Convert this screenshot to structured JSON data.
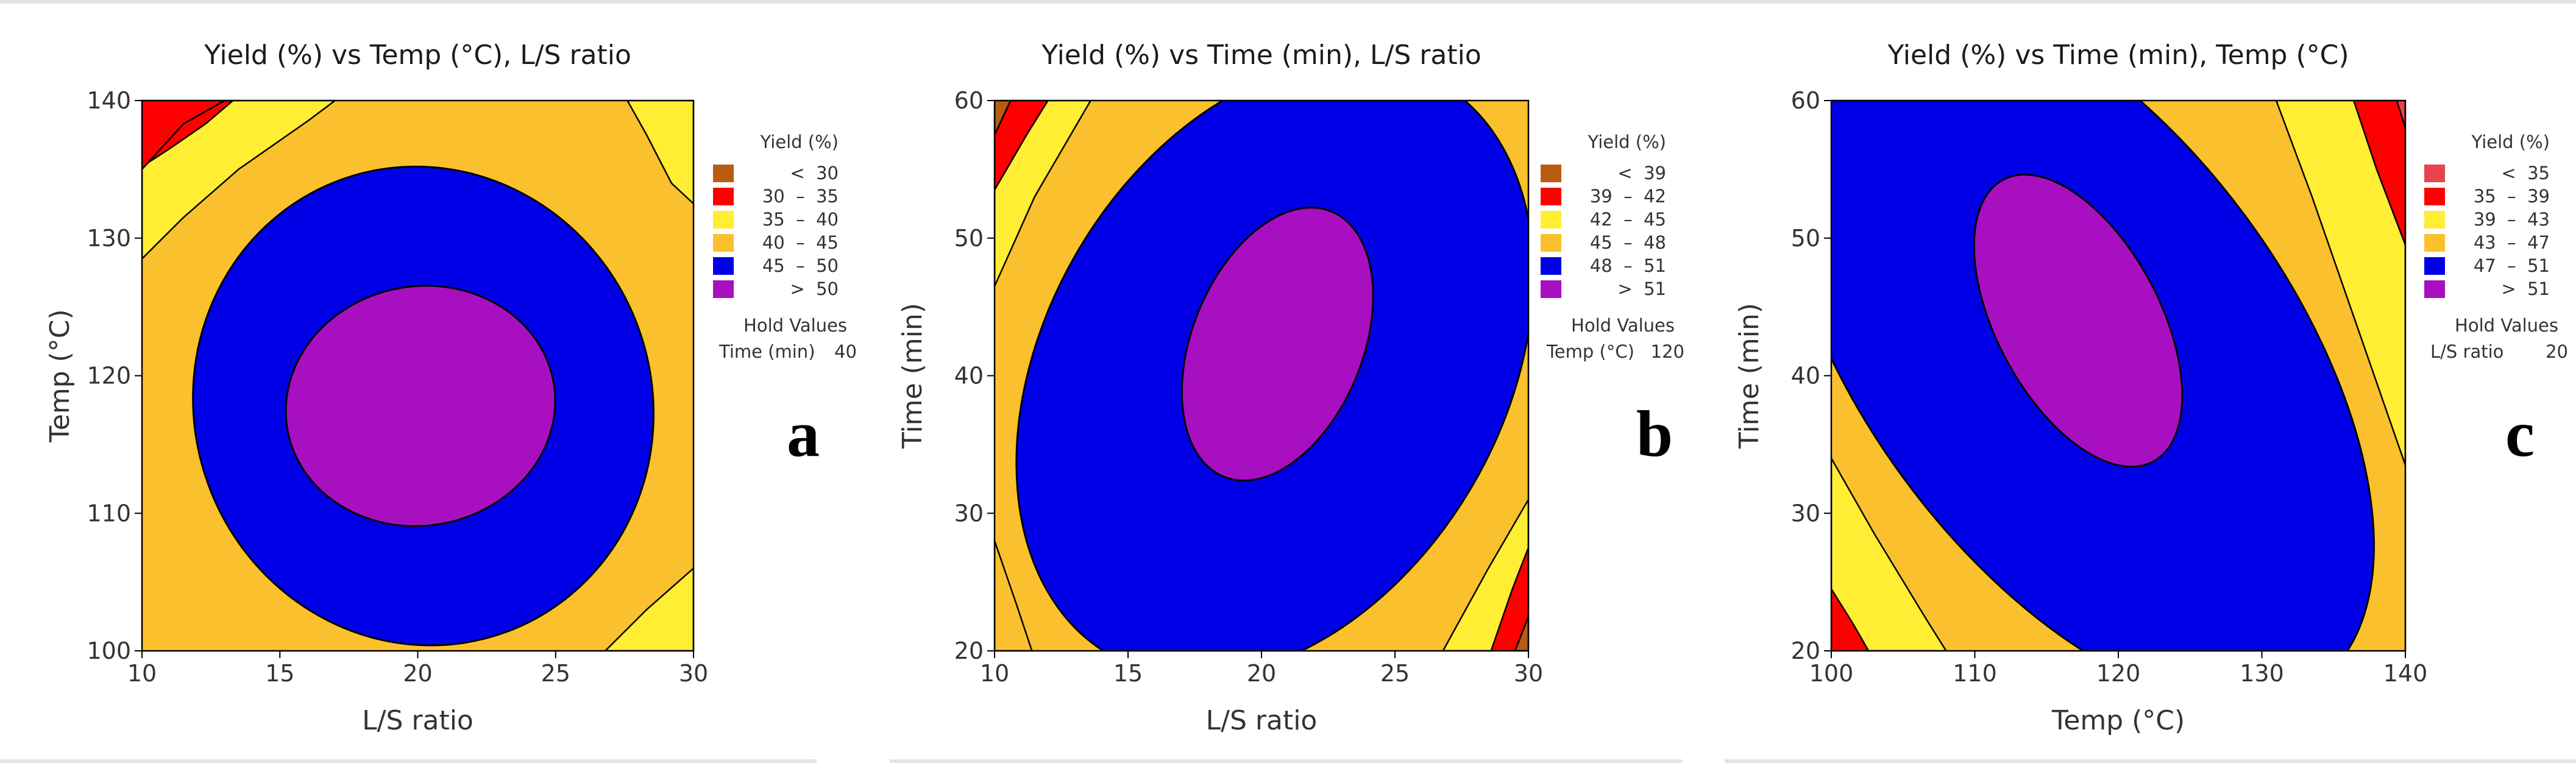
{
  "figure": {
    "background": "#ffffff",
    "separator_color": "#e3e3e3"
  },
  "chart_data": [
    {
      "type": "contour",
      "panel_letter": "a",
      "title": "Yield (%) vs Temp (°C), L/S ratio",
      "xlabel": "L/S ratio",
      "ylabel": "Temp (°C)",
      "xlim": [
        10,
        30
      ],
      "ylim": [
        100,
        140
      ],
      "xticks": [
        "10",
        "15",
        "20",
        "25",
        "30"
      ],
      "yticks": [
        "100",
        "110",
        "120",
        "130",
        "140"
      ],
      "legend": {
        "title": "Yield (%)",
        "entries": [
          {
            "label": "<  30",
            "color": "#b85c12"
          },
          {
            "label": "30  –  35",
            "color": "#ff0000"
          },
          {
            "label": "35  –  40",
            "color": "#ffee33"
          },
          {
            "label": "40  –  45",
            "color": "#fbc02d"
          },
          {
            "label": "45  –  50",
            "color": "#0000e6"
          },
          {
            "label": ">  50",
            "color": "#a80fc0"
          }
        ],
        "hold_title": "Hold Values",
        "hold_label": "Time (min)",
        "hold_value": "40"
      },
      "contour_regions": [
        {
          "label": "<  30",
          "color": "#b85c12"
        },
        {
          "label": "30  –  35",
          "color": "#ff0000",
          "region": {
            "type": "corner",
            "corner": "top-left",
            "reach_x": 13,
            "reach_y": 135
          }
        },
        {
          "label": "35  –  40",
          "color": "#ffee33"
        },
        {
          "label": "40  –  45",
          "color": "#fbc02d"
        },
        {
          "label": "45  –  50",
          "color": "#0000e6",
          "region": {
            "type": "ellipse",
            "cx": 20.2,
            "cy": 117.8,
            "rx": 8.3,
            "ry": 17.5,
            "rotate": -20
          }
        },
        {
          "label": ">  50",
          "color": "#a80fc0",
          "region": {
            "type": "ellipse",
            "cx": 20.1,
            "cy": 117.8,
            "rx": 4.9,
            "ry": 8.7,
            "rotate": -10
          }
        }
      ],
      "contour_bands": [
        {
          "color": "#ffee33",
          "polygon": [
            [
              10,
              128.5
            ],
            [
              11.5,
              131.5
            ],
            [
              13.5,
              135
            ],
            [
              16,
              138.5
            ],
            [
              17,
              140
            ],
            [
              10,
              140
            ]
          ]
        },
        {
          "color": "#ffee33",
          "polygon": [
            [
              26.8,
              100
            ],
            [
              28.3,
              103
            ],
            [
              30,
              106
            ],
            [
              30,
              100
            ]
          ]
        },
        {
          "color": "#ffee33",
          "polygon": [
            [
              27.6,
              140
            ],
            [
              28.3,
              137.5
            ],
            [
              29.2,
              134
            ],
            [
              30,
              132.5
            ],
            [
              30,
              140
            ]
          ]
        },
        {
          "color": "#ff0000",
          "polygon": [
            [
              10,
              135.2
            ],
            [
              11,
              136.5
            ],
            [
              12.3,
              138.3
            ],
            [
              13.3,
              140
            ],
            [
              10,
              140
            ]
          ]
        }
      ]
    },
    {
      "type": "contour",
      "panel_letter": "b",
      "title": "Yield (%) vs Time (min), L/S ratio",
      "xlabel": "L/S ratio",
      "ylabel": "Time (min)",
      "xlim": [
        10,
        30
      ],
      "ylim": [
        20,
        60
      ],
      "xticks": [
        "10",
        "15",
        "20",
        "25",
        "30"
      ],
      "yticks": [
        "20",
        "30",
        "40",
        "50",
        "60"
      ],
      "legend": {
        "title": "Yield (%)",
        "entries": [
          {
            "label": "<  39",
            "color": "#b85c12"
          },
          {
            "label": "39  –  42",
            "color": "#ff0000"
          },
          {
            "label": "42  –  45",
            "color": "#ffee33"
          },
          {
            "label": "45  –  48",
            "color": "#fbc02d"
          },
          {
            "label": "48  –  51",
            "color": "#0000e6"
          },
          {
            "label": ">  51",
            "color": "#a80fc0"
          }
        ],
        "hold_title": "Hold Values",
        "hold_label": "Temp (°C)",
        "hold_value": "120"
      },
      "contour_regions": [
        {
          "label": "<  39",
          "color": "#b85c12"
        },
        {
          "label": "39  –  42",
          "color": "#ff0000"
        },
        {
          "label": "42  –  45",
          "color": "#ffee33"
        },
        {
          "label": "45  –  48",
          "color": "#fbc02d"
        },
        {
          "label": "48  –  51",
          "color": "#0000e6",
          "region": {
            "type": "ellipse",
            "cx": 20.5,
            "cy": 40.5,
            "rx": 8.6,
            "ry": 24,
            "rotate": 30
          }
        },
        {
          "label": ">  51",
          "color": "#a80fc0",
          "region": {
            "type": "ellipse",
            "cx": 20.6,
            "cy": 42.3,
            "rx": 3.2,
            "ry": 10.4,
            "rotate": 22
          }
        }
      ],
      "contour_bands": [
        {
          "color": "#ffee33",
          "polygon": [
            [
              10,
              46.5
            ],
            [
              11.5,
              53
            ],
            [
              13,
              58
            ],
            [
              13.6,
              60
            ],
            [
              10,
              60
            ]
          ]
        },
        {
          "color": "#ff0000",
          "polygon": [
            [
              10,
              53.5
            ],
            [
              11.2,
              57.5
            ],
            [
              12,
              60
            ],
            [
              10,
              60
            ]
          ]
        },
        {
          "color": "#b85c12",
          "polygon": [
            [
              10,
              57.5
            ],
            [
              10.6,
              60
            ],
            [
              10,
              60
            ]
          ]
        },
        {
          "color": "#ffee33",
          "polygon": [
            [
              26.8,
              20
            ],
            [
              28.5,
              26
            ],
            [
              30,
              31
            ],
            [
              30,
              20
            ]
          ]
        },
        {
          "color": "#ff0000",
          "polygon": [
            [
              28.6,
              20
            ],
            [
              29.4,
              24.5
            ],
            [
              30,
              27.5
            ],
            [
              30,
              20
            ]
          ]
        },
        {
          "color": "#b85c12",
          "polygon": [
            [
              29.5,
              20
            ],
            [
              30,
              22.5
            ],
            [
              30,
              20
            ]
          ]
        },
        {
          "color": "#fbc02d",
          "polygon": [
            [
              10,
              28
            ],
            [
              10.8,
              23.5
            ],
            [
              11.4,
              20
            ],
            [
              10,
              20
            ]
          ]
        }
      ]
    },
    {
      "type": "contour",
      "panel_letter": "c",
      "title": "Yield (%) vs Time (min), Temp (°C)",
      "xlabel": "Temp (°C)",
      "ylabel": "Time (min)",
      "xlim": [
        100,
        140
      ],
      "ylim": [
        20,
        60
      ],
      "xticks": [
        "100",
        "110",
        "120",
        "130",
        "140"
      ],
      "yticks": [
        "20",
        "30",
        "40",
        "50",
        "60"
      ],
      "legend": {
        "title": "Yield (%)",
        "entries": [
          {
            "label": "<  35",
            "color": "#e8424c"
          },
          {
            "label": "35  –  39",
            "color": "#ff0000"
          },
          {
            "label": "39  –  43",
            "color": "#ffee33"
          },
          {
            "label": "43  –  47",
            "color": "#fbc02d"
          },
          {
            "label": "47  –  51",
            "color": "#0000e6"
          },
          {
            "label": ">  51",
            "color": "#a80fc0"
          }
        ],
        "hold_title": "Hold Values",
        "hold_label": "L/S ratio",
        "hold_value": "20"
      },
      "contour_regions": [
        {
          "label": "<  35",
          "color": "#e8424c"
        },
        {
          "label": "35  –  39",
          "color": "#ff0000"
        },
        {
          "label": "39  –  43",
          "color": "#ffee33"
        },
        {
          "label": "43  –  47",
          "color": "#fbc02d"
        },
        {
          "label": "47  –  51",
          "color": "#0000e6",
          "region": {
            "type": "ellipse",
            "cx": 117,
            "cy": 42,
            "rx": 15,
            "ry": 30,
            "rotate": -36
          }
        },
        {
          "label": ">  51",
          "color": "#a80fc0",
          "region": {
            "type": "ellipse",
            "cx": 117.2,
            "cy": 44,
            "rx": 5.7,
            "ry": 11.6,
            "rotate": -28
          }
        }
      ],
      "contour_bands": [
        {
          "color": "#ffee33",
          "polygon": [
            [
              100,
              34
            ],
            [
              103,
              28.5
            ],
            [
              106.5,
              22.5
            ],
            [
              108,
              20
            ],
            [
              100,
              20
            ]
          ]
        },
        {
          "color": "#ff0000",
          "polygon": [
            [
              100,
              24.5
            ],
            [
              101.5,
              22
            ],
            [
              102.6,
              20
            ],
            [
              100,
              20
            ]
          ]
        },
        {
          "color": "#ffee33",
          "polygon": [
            [
              131,
              60
            ],
            [
              133.5,
              53
            ],
            [
              136.5,
              44
            ],
            [
              139,
              36.5
            ],
            [
              140,
              33.5
            ],
            [
              140,
              60
            ]
          ]
        },
        {
          "color": "#ff0000",
          "polygon": [
            [
              136.4,
              60
            ],
            [
              138,
              55
            ],
            [
              140,
              49.5
            ],
            [
              140,
              60
            ]
          ]
        },
        {
          "color": "#e8424c",
          "polygon": [
            [
              139.4,
              60
            ],
            [
              140,
              58
            ],
            [
              140,
              60
            ]
          ]
        }
      ]
    }
  ]
}
